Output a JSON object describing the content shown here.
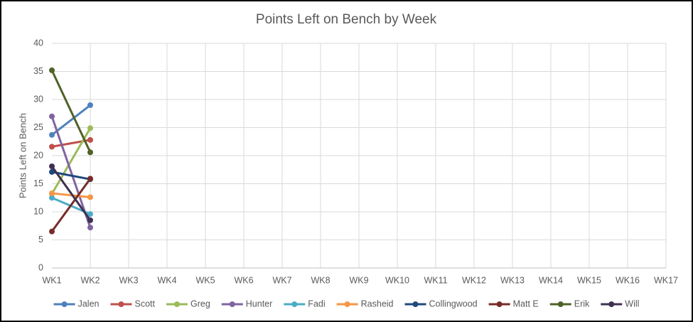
{
  "chart_data": {
    "type": "line",
    "title": "Points Left on Bench by Week",
    "y_label": "Points Left on Bench",
    "categories": [
      "WK1",
      "WK2",
      "WK3",
      "WK4",
      "WK5",
      "WK6",
      "WK7",
      "WK8",
      "WK9",
      "WK10",
      "WK11",
      "WK12",
      "WK13",
      "WK14",
      "WK15",
      "WK16",
      "WK17"
    ],
    "series": [
      {
        "name": "Jalen",
        "color": "#4f81bd",
        "values": [
          23.7,
          29.0,
          null,
          null,
          null,
          null,
          null,
          null,
          null,
          null,
          null,
          null,
          null,
          null,
          null,
          null,
          null
        ]
      },
      {
        "name": "Scott",
        "color": "#c0504d",
        "values": [
          21.6,
          22.8,
          null,
          null,
          null,
          null,
          null,
          null,
          null,
          null,
          null,
          null,
          null,
          null,
          null,
          null,
          null
        ]
      },
      {
        "name": "Greg",
        "color": "#9bbb59",
        "values": [
          13.2,
          24.9,
          null,
          null,
          null,
          null,
          null,
          null,
          null,
          null,
          null,
          null,
          null,
          null,
          null,
          null,
          null
        ]
      },
      {
        "name": "Hunter",
        "color": "#8064a2",
        "values": [
          27.0,
          7.2,
          null,
          null,
          null,
          null,
          null,
          null,
          null,
          null,
          null,
          null,
          null,
          null,
          null,
          null,
          null
        ]
      },
      {
        "name": "Fadi",
        "color": "#4bacc6",
        "values": [
          12.5,
          9.6,
          null,
          null,
          null,
          null,
          null,
          null,
          null,
          null,
          null,
          null,
          null,
          null,
          null,
          null,
          null
        ]
      },
      {
        "name": "Rasheid",
        "color": "#f79646",
        "values": [
          13.3,
          12.6,
          null,
          null,
          null,
          null,
          null,
          null,
          null,
          null,
          null,
          null,
          null,
          null,
          null,
          null,
          null
        ]
      },
      {
        "name": "Collingwood",
        "color": "#1f497d",
        "values": [
          17.1,
          15.8,
          null,
          null,
          null,
          null,
          null,
          null,
          null,
          null,
          null,
          null,
          null,
          null,
          null,
          null,
          null
        ]
      },
      {
        "name": "Matt E",
        "color": "#772c2a",
        "values": [
          6.5,
          15.9,
          null,
          null,
          null,
          null,
          null,
          null,
          null,
          null,
          null,
          null,
          null,
          null,
          null,
          null,
          null
        ]
      },
      {
        "name": "Erik",
        "color": "#4f6228",
        "values": [
          35.2,
          20.6,
          null,
          null,
          null,
          null,
          null,
          null,
          null,
          null,
          null,
          null,
          null,
          null,
          null,
          null,
          null
        ]
      },
      {
        "name": "Will",
        "color": "#3f3151",
        "values": [
          18.1,
          8.5,
          null,
          null,
          null,
          null,
          null,
          null,
          null,
          null,
          null,
          null,
          null,
          null,
          null,
          null,
          null
        ]
      }
    ],
    "ylim": [
      0,
      40
    ],
    "yticks": [
      0,
      5,
      10,
      15,
      20,
      25,
      30,
      35,
      40
    ],
    "grid": true,
    "legend": "bottom"
  }
}
